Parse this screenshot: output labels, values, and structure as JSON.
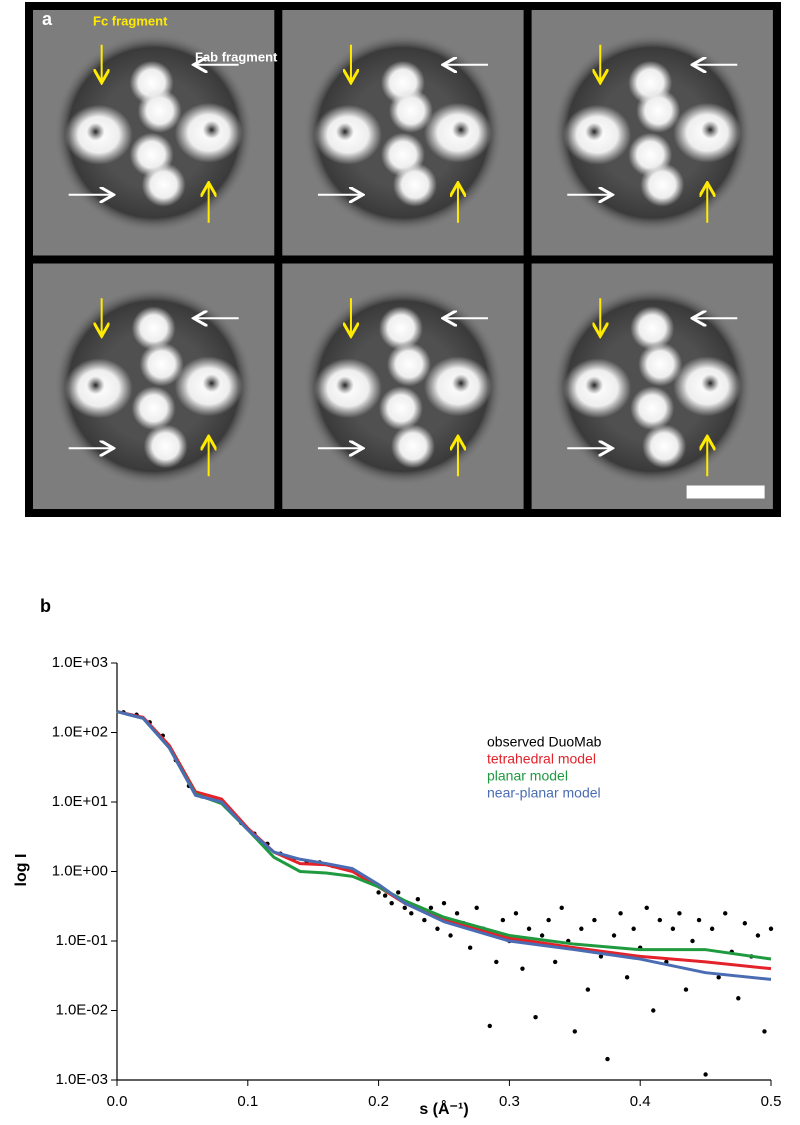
{
  "panel_a": {
    "label": "a",
    "fc_label": "Fc fragment",
    "fab_label": "Fab fragment"
  },
  "chart_data": {
    "type": "line",
    "panel_label": "b",
    "xlabel": "s (Å⁻¹)",
    "ylabel": "log I",
    "yscale": "log",
    "legend": "right",
    "xlim": [
      0,
      0.5
    ],
    "ylim": [
      0.001,
      1000
    ],
    "xticks": [
      {
        "value": 0,
        "label": "0.0"
      },
      0.1,
      0.2,
      0.3,
      0.4,
      0.5
    ],
    "yticks": [
      {
        "value": 0.001,
        "label": "1.0E-03"
      },
      {
        "value": 0.01,
        "label": "1.0E-02"
      },
      {
        "value": 0.1,
        "label": "1.0E-01"
      },
      {
        "value": 1,
        "label": "1.0E+00"
      },
      {
        "value": 10,
        "label": "1.0E+01"
      },
      {
        "value": 100,
        "label": "1.0E+02"
      },
      {
        "value": 1000,
        "label": "1.0E+03"
      }
    ],
    "x": [
      0,
      0.02,
      0.04,
      0.06,
      0.08,
      0.1,
      0.12,
      0.14,
      0.16,
      0.18,
      0.2,
      0.22,
      0.25,
      0.3,
      0.35,
      0.4,
      0.45,
      0.5
    ],
    "series": [
      {
        "name": "observed DuoMab",
        "kind": "scatter",
        "color": "#000000",
        "x": [
          0.005,
          0.015,
          0.025,
          0.035,
          0.045,
          0.055,
          0.065,
          0.075,
          0.085,
          0.095,
          0.105,
          0.115,
          0.125,
          0.135,
          0.145,
          0.155,
          0.165,
          0.175,
          0.185,
          0.195,
          0.2,
          0.205,
          0.21,
          0.215,
          0.22,
          0.225,
          0.23,
          0.235,
          0.24,
          0.245,
          0.25,
          0.255,
          0.26,
          0.265,
          0.27,
          0.275,
          0.28,
          0.285,
          0.29,
          0.295,
          0.3,
          0.305,
          0.31,
          0.315,
          0.32,
          0.325,
          0.33,
          0.335,
          0.34,
          0.345,
          0.35,
          0.355,
          0.36,
          0.365,
          0.37,
          0.375,
          0.38,
          0.385,
          0.39,
          0.395,
          0.4,
          0.405,
          0.41,
          0.415,
          0.42,
          0.425,
          0.43,
          0.435,
          0.44,
          0.445,
          0.45,
          0.455,
          0.46,
          0.465,
          0.47,
          0.475,
          0.48,
          0.485,
          0.49,
          0.495,
          0.5
        ],
        "values": [
          195,
          180,
          140,
          90,
          40,
          17,
          12,
          11,
          8,
          5,
          3.5,
          2.5,
          1.8,
          1.5,
          1.4,
          1.35,
          1.2,
          1.1,
          0.9,
          0.7,
          0.5,
          0.45,
          0.35,
          0.5,
          0.3,
          0.25,
          0.4,
          0.2,
          0.3,
          0.15,
          0.35,
          0.12,
          0.25,
          0.18,
          0.08,
          0.3,
          0.15,
          0.006,
          0.05,
          0.2,
          0.1,
          0.25,
          0.04,
          0.15,
          0.008,
          0.12,
          0.2,
          0.05,
          0.3,
          0.1,
          0.005,
          0.15,
          0.02,
          0.2,
          0.06,
          0.002,
          0.12,
          0.25,
          0.03,
          0.15,
          0.08,
          0.3,
          0.01,
          0.2,
          0.05,
          0.15,
          0.25,
          0.02,
          0.1,
          0.2,
          0.0012,
          0.15,
          0.03,
          0.25,
          0.07,
          0.015,
          0.18,
          0.06,
          0.12,
          0.005,
          0.15
        ]
      },
      {
        "name": "tetrahedral model",
        "kind": "line",
        "color": "#e32229",
        "values": [
          200,
          165,
          65,
          14,
          11,
          4.2,
          1.9,
          1.3,
          1.25,
          1.0,
          0.6,
          0.35,
          0.2,
          0.11,
          0.08,
          0.06,
          0.05,
          0.04
        ]
      },
      {
        "name": "planar model",
        "kind": "line",
        "color": "#1f9a3f",
        "values": [
          200,
          160,
          60,
          13,
          9.5,
          4,
          1.6,
          1.0,
          0.95,
          0.85,
          0.6,
          0.38,
          0.22,
          0.12,
          0.09,
          0.075,
          0.075,
          0.055
        ]
      },
      {
        "name": "near-planar model",
        "kind": "line",
        "color": "#4a6cb3",
        "values": [
          200,
          160,
          60,
          12.5,
          10,
          4,
          1.9,
          1.5,
          1.3,
          1.1,
          0.65,
          0.35,
          0.19,
          0.1,
          0.075,
          0.055,
          0.035,
          0.028
        ]
      }
    ]
  }
}
